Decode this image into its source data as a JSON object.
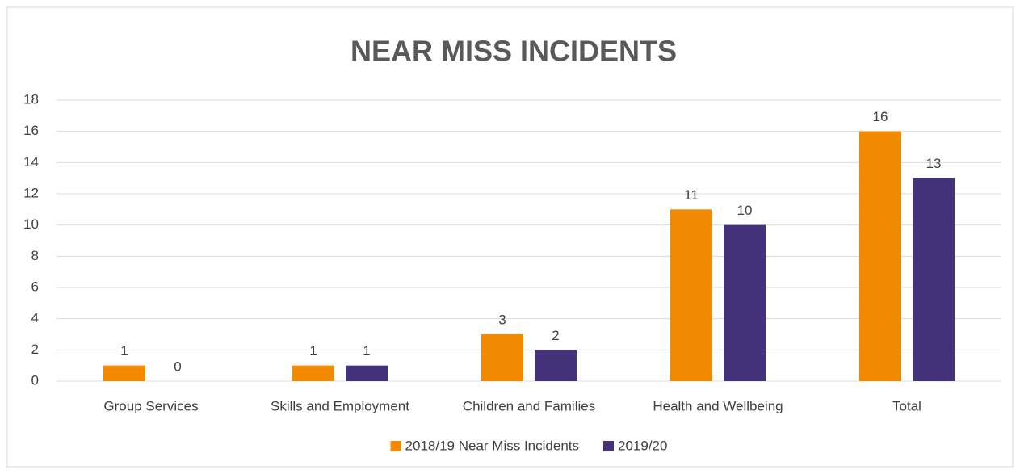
{
  "chart_data": {
    "type": "bar",
    "title": "NEAR MISS INCIDENTS",
    "categories": [
      "Group Services",
      "Skills and Employment",
      "Children and Families",
      "Health and Wellbeing",
      "Total"
    ],
    "series": [
      {
        "name": "2018/19 Near Miss Incidents",
        "color": "#f18a00",
        "values": [
          1,
          1,
          3,
          11,
          16
        ]
      },
      {
        "name": "2019/20",
        "color": "#44337a",
        "values": [
          0,
          1,
          2,
          10,
          13
        ]
      }
    ],
    "ylim": [
      0,
      18
    ],
    "yticks": [
      0,
      2,
      4,
      6,
      8,
      10,
      12,
      14,
      16,
      18
    ],
    "grid": true,
    "legend": "bottom"
  }
}
